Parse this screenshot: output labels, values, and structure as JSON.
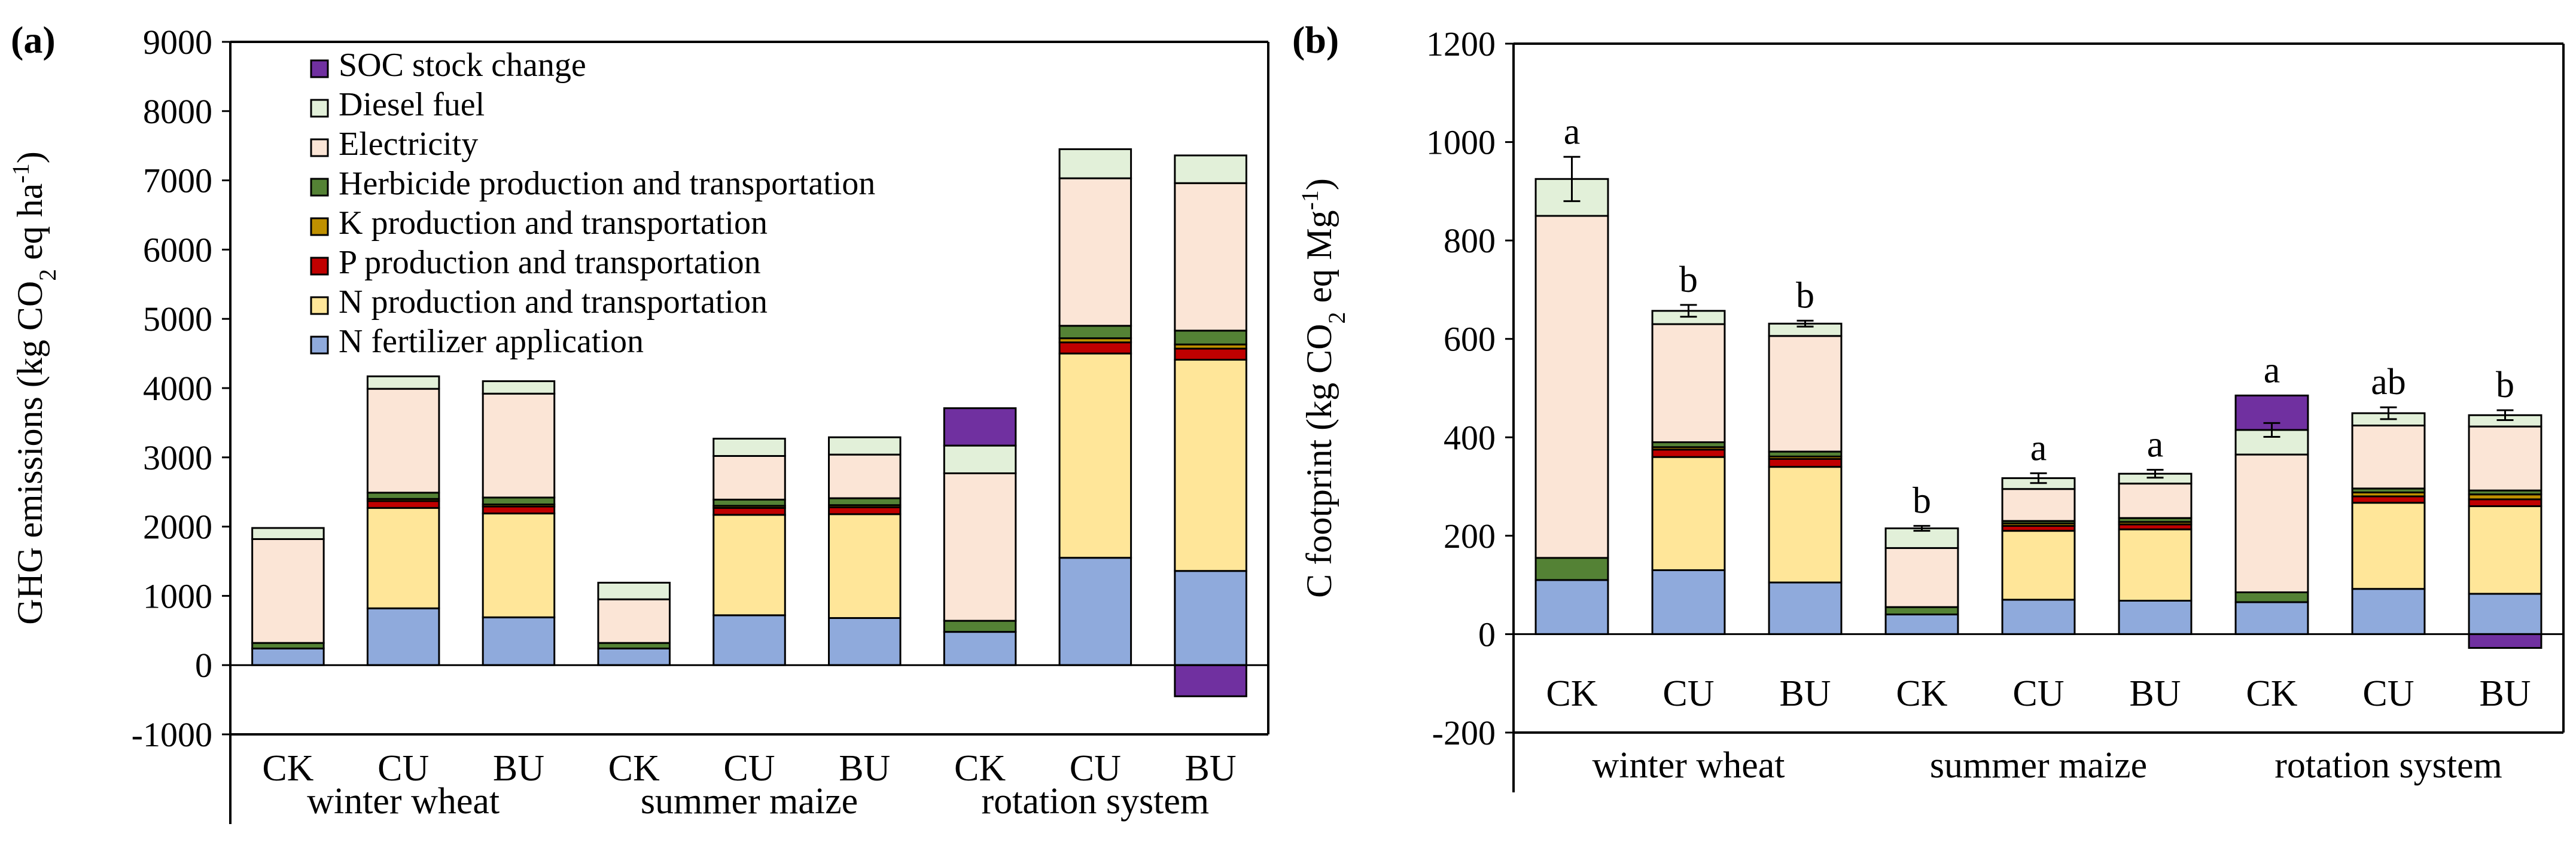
{
  "chart_data": [
    {
      "panel_label": "(a)",
      "type": "bar",
      "stacked": true,
      "ylabel": "GHG emissions (kg CO2 eq ha-1)",
      "ylabel_parts": {
        "pre": "GHG emissions (kg CO",
        "sub": "2",
        "mid": " eq ha",
        "sup": "-1",
        "post": ")"
      },
      "ylim": [
        -1000,
        9000
      ],
      "yticks": [
        -1000,
        0,
        1000,
        2000,
        3000,
        4000,
        5000,
        6000,
        7000,
        8000,
        9000
      ],
      "categories": [
        "CK",
        "CU",
        "BU",
        "CK",
        "CU",
        "BU",
        "CK",
        "CU",
        "BU"
      ],
      "groups": [
        "winter wheat",
        "summer maize",
        "rotation system"
      ],
      "legend_position": "top-left",
      "series": [
        {
          "name": "N fertilizer application",
          "color": "#8FAADC",
          "values": [
            240,
            820,
            690,
            240,
            720,
            680,
            480,
            1550,
            1360
          ]
        },
        {
          "name": "N production and transportation",
          "color": "#FFE699",
          "values": [
            0,
            1450,
            1500,
            0,
            1450,
            1500,
            0,
            2950,
            3050
          ]
        },
        {
          "name": "P production and transportation",
          "color": "#C00000",
          "values": [
            0,
            100,
            100,
            0,
            100,
            100,
            0,
            160,
            160
          ]
        },
        {
          "name": "K production and transportation",
          "color": "#BF9000",
          "values": [
            0,
            30,
            30,
            0,
            30,
            30,
            0,
            60,
            60
          ]
        },
        {
          "name": "Herbicide production and transportation",
          "color": "#548235",
          "values": [
            80,
            90,
            100,
            80,
            90,
            100,
            160,
            180,
            200
          ]
        },
        {
          "name": "Electricity",
          "color": "#FBE5D6",
          "values": [
            1500,
            1500,
            1500,
            630,
            630,
            630,
            2130,
            2130,
            2130
          ]
        },
        {
          "name": "Diesel fuel",
          "color": "#E2F0D9",
          "values": [
            160,
            180,
            180,
            240,
            250,
            250,
            400,
            420,
            400
          ]
        },
        {
          "name": "SOC stock change",
          "color": "#7030A0",
          "values": [
            0,
            0,
            0,
            0,
            0,
            0,
            540,
            0,
            -450
          ]
        }
      ]
    },
    {
      "panel_label": "(b)",
      "type": "bar",
      "stacked": true,
      "ylabel": "C footprint (kg CO2 eq Mg-1)",
      "ylabel_parts": {
        "pre": "C footprint (kg CO",
        "sub": "2",
        "mid": " eq Mg",
        "sup": "-1",
        "post": ")"
      },
      "ylim": [
        -200,
        1200
      ],
      "yticks": [
        -200,
        0,
        200,
        400,
        600,
        800,
        1000,
        1200
      ],
      "categories": [
        "CK",
        "CU",
        "BU",
        "CK",
        "CU",
        "BU",
        "CK",
        "CU",
        "BU"
      ],
      "groups": [
        "winter wheat",
        "summer maize",
        "rotation system"
      ],
      "significance": [
        "a",
        "b",
        "b",
        "b",
        "a",
        "a",
        "a",
        "ab",
        "b"
      ],
      "error_bars": [
        45,
        12,
        6,
        5,
        10,
        8,
        14,
        12,
        10
      ],
      "series": [
        {
          "name": "N fertilizer application",
          "values": [
            110,
            130,
            105,
            40,
            70,
            68,
            65,
            92,
            82
          ]
        },
        {
          "name": "N production and transportation",
          "values": [
            0,
            230,
            235,
            0,
            140,
            145,
            0,
            175,
            178
          ]
        },
        {
          "name": "P production and transportation",
          "values": [
            0,
            15,
            16,
            0,
            10,
            10,
            0,
            13,
            14
          ]
        },
        {
          "name": "K production and transportation",
          "values": [
            0,
            5,
            5,
            0,
            5,
            5,
            0,
            8,
            10
          ]
        },
        {
          "name": "Herbicide production and transportation",
          "values": [
            45,
            10,
            10,
            15,
            5,
            8,
            20,
            8,
            8
          ]
        },
        {
          "name": "Electricity",
          "values": [
            695,
            240,
            235,
            120,
            65,
            70,
            280,
            128,
            130
          ]
        },
        {
          "name": "Diesel fuel",
          "values": [
            75,
            27,
            25,
            40,
            22,
            20,
            50,
            25,
            23
          ]
        },
        {
          "name": "SOC stock change",
          "values": [
            0,
            0,
            0,
            0,
            0,
            0,
            70,
            0,
            -28
          ]
        }
      ]
    }
  ]
}
